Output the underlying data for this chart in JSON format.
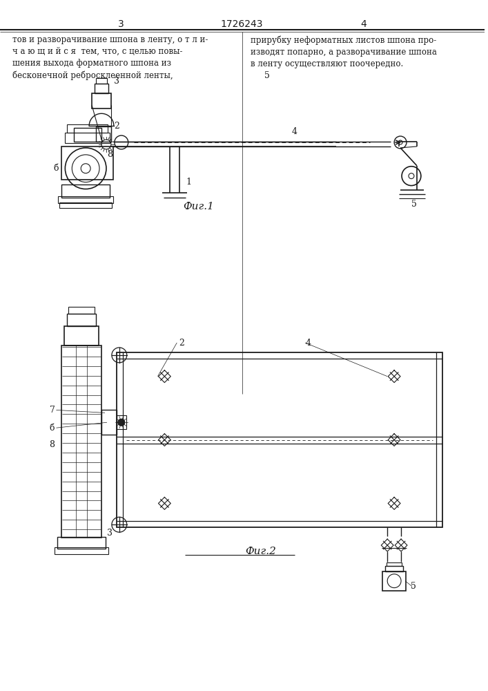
{
  "title": "1726243",
  "page_left": "3",
  "page_right": "4",
  "fig1_label": "Фиг.1",
  "fig2_label": "Фиг.2",
  "text_left": "тов и разворачивание шпона в ленту, о т л и-\nч а ю щ и й с я  тем, что, с целью повы-\nшения выхода форматного шпона из\nбесконечной ребросклеенной ленты,",
  "text_right": "прирубку неформатных листов шпона про-\nизводят попарно, а разворачивание шпона\nв ленту осуществляют поочередно.",
  "bg_color": "#ffffff",
  "line_color": "#1a1a1a",
  "text_color": "#1a1a1a",
  "label_fontsize": 9,
  "text_fontsize": 8.5,
  "fig_label_fontsize": 11
}
